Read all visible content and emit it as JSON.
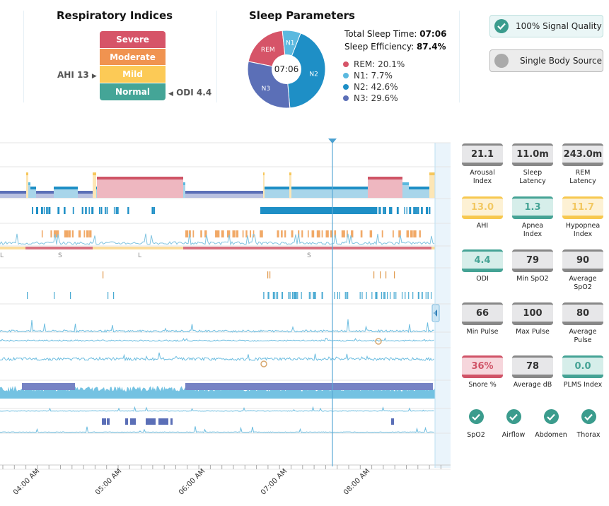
{
  "respiratory": {
    "title": "Respiratory Indices",
    "levels": [
      {
        "label": "Severe",
        "color": "#d65468"
      },
      {
        "label": "Moderate",
        "color": "#f09350"
      },
      {
        "label": "Mild",
        "color": "#fcca56"
      },
      {
        "label": "Normal",
        "color": "#44a597"
      }
    ],
    "ahi_pointer": "AHI 13",
    "odi_pointer": "ODI 4.4"
  },
  "sleep": {
    "title": "Sleep Parameters",
    "center_label": "07:06",
    "total_sleep_label": "Total Sleep Time:",
    "total_sleep_value": "07:06",
    "efficiency_label": "Sleep Efficiency:",
    "efficiency_value": "87.4%",
    "legend": [
      {
        "text": "REM: 20.1%",
        "color": "#d65468"
      },
      {
        "text": "N1: 7.7%",
        "color": "#5bb9df"
      },
      {
        "text": "N2: 42.6%",
        "color": "#1e8fc6"
      },
      {
        "text": "N3: 29.6%",
        "color": "#5b6fb7"
      }
    ]
  },
  "chart_data": {
    "type": "pie",
    "title": "Sleep Parameters",
    "categories": [
      "REM",
      "N1",
      "N2",
      "N3"
    ],
    "values": [
      20.1,
      7.7,
      42.6,
      29.6
    ],
    "colors": [
      "#d65468",
      "#5bb9df",
      "#1e8fc6",
      "#5b6fb7"
    ],
    "center_text": "07:06"
  },
  "status": {
    "signal_quality": "100% Signal Quality",
    "body_source": "Single Body Source"
  },
  "metrics": [
    {
      "value": "21.1",
      "label": "Arousal Index",
      "style": "gray"
    },
    {
      "value": "11.0m",
      "label": "Sleep Latency",
      "style": "gray"
    },
    {
      "value": "243.0m",
      "label": "REM Latency",
      "style": "gray"
    },
    {
      "value": "13.0",
      "label": "AHI",
      "style": "yellow"
    },
    {
      "value": "1.3",
      "label": "Apnea Index",
      "style": "teal"
    },
    {
      "value": "11.7",
      "label": "Hypopnea Index",
      "style": "yellow"
    },
    {
      "value": "4.4",
      "label": "ODI",
      "style": "teal"
    },
    {
      "value": "79",
      "label": "Min SpO2",
      "style": "gray"
    },
    {
      "value": "90",
      "label": "Average SpO2",
      "style": "gray"
    },
    {
      "value": "66",
      "label": "Min Pulse",
      "style": "gray"
    },
    {
      "value": "100",
      "label": "Max Pulse",
      "style": "gray"
    },
    {
      "value": "80",
      "label": "Average Pulse",
      "style": "gray"
    },
    {
      "value": "36%",
      "label": "Snore %",
      "style": "red"
    },
    {
      "value": "78",
      "label": "Average dB",
      "style": "gray"
    },
    {
      "value": "0.0",
      "label": "PLMS Index",
      "style": "teal"
    }
  ],
  "channels": [
    {
      "label": "SpO2"
    },
    {
      "label": "Airflow"
    },
    {
      "label": "Abdomen"
    },
    {
      "label": "Thorax"
    }
  ],
  "timeline": {
    "x_ticks": [
      "04:00 AM",
      "05:00 AM",
      "06:00 AM",
      "07:00 AM",
      "08:00 AM"
    ],
    "position_labels": [
      "L",
      "S",
      "L",
      "S"
    ]
  }
}
